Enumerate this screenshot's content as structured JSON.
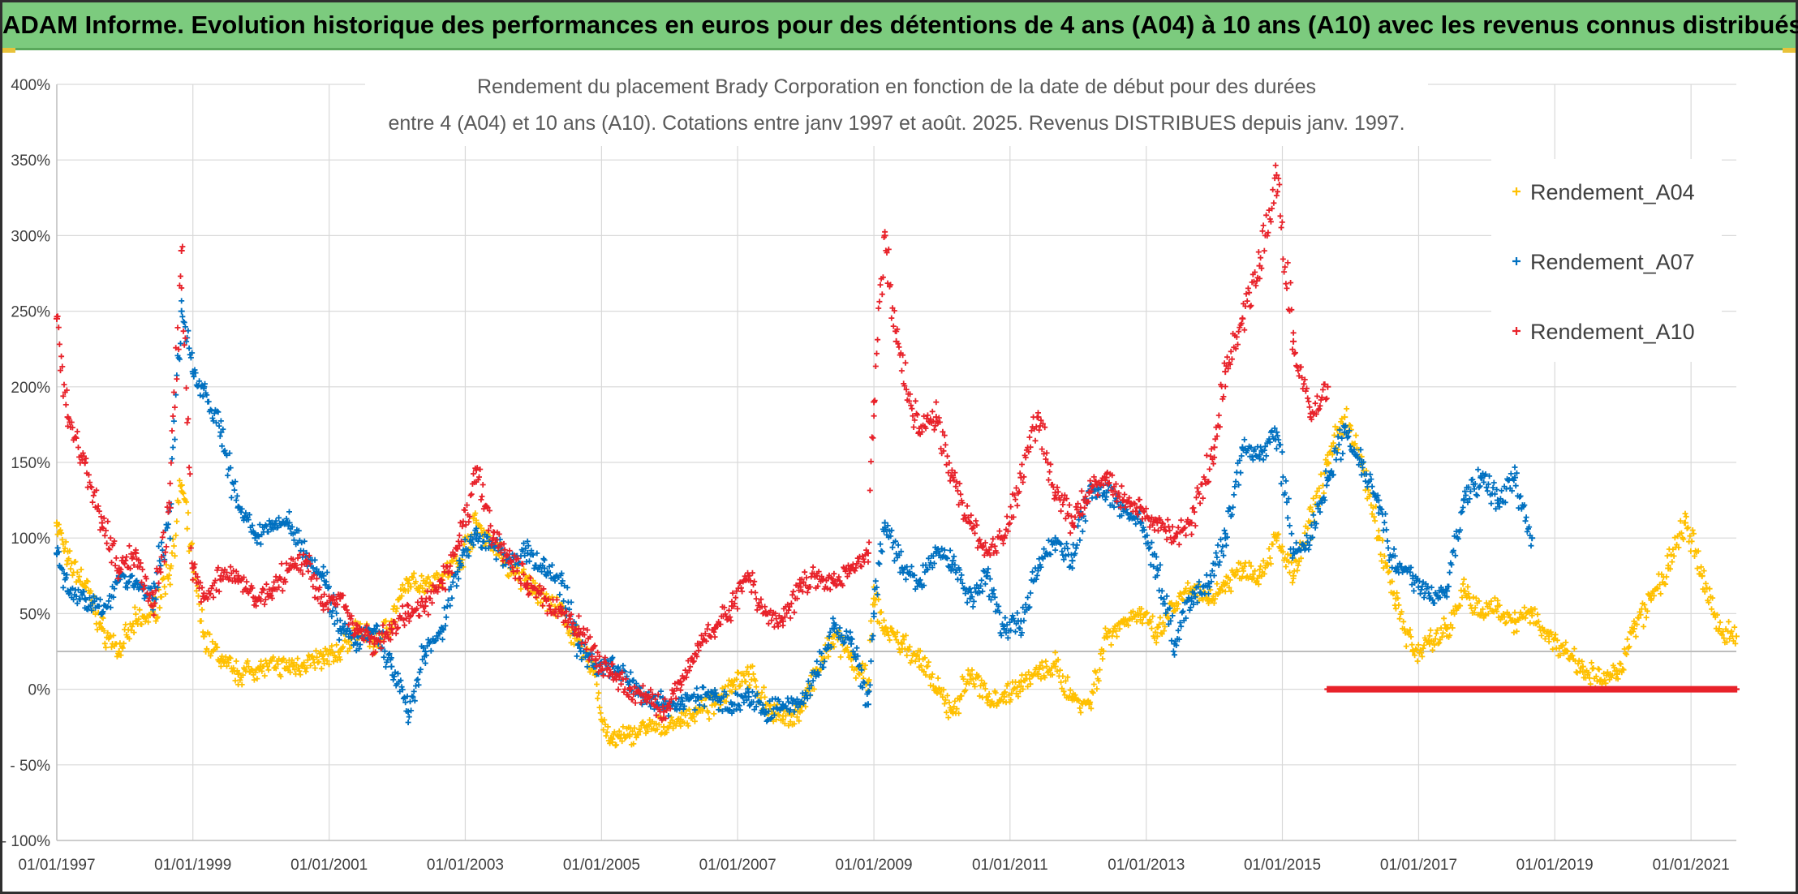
{
  "banner": {
    "title": "ADAM Informe. Evolution historique des performances en euros pour des détentions de 4 ans (A04) à 10 ans (A10) avec les revenus connus distribués"
  },
  "chart_data": {
    "type": "scatter",
    "title_line1": "Rendement du placement Brady Corporation en fonction de la date de début pour des durées",
    "title_line2": "entre 4 (A04) et 10 ans (A10). Cotations entre janv 1997 et août. 2025. Revenus DISTRIBUES depuis janv. 1997.",
    "xlabel": "",
    "ylabel": "",
    "x_ticks": [
      "01/01/1997",
      "01/01/1999",
      "01/01/2001",
      "01/01/2003",
      "01/01/2005",
      "01/01/2007",
      "01/01/2009",
      "01/01/2011",
      "01/01/2013",
      "01/01/2015",
      "01/01/2017",
      "01/01/2019",
      "01/01/2021"
    ],
    "y_ticks": [
      "400%",
      "350%",
      "300%",
      "250%",
      "200%",
      "150%",
      "100%",
      "50%",
      "0%",
      "- 50%",
      "- 100%"
    ],
    "xlim": [
      "1997-01-01",
      "2021-09-01"
    ],
    "ylim": [
      -100,
      400
    ],
    "reference_line": 25,
    "grid": true,
    "legend_position": "top-right",
    "marker": "+",
    "series": [
      {
        "name": "Rendement_A04",
        "color": "#ffc000",
        "points": [
          [
            "1997-01-01",
            110
          ],
          [
            "1997-03-01",
            85
          ],
          [
            "1997-06-01",
            70
          ],
          [
            "1997-09-01",
            40
          ],
          [
            "1997-12-01",
            25
          ],
          [
            "1998-03-01",
            45
          ],
          [
            "1998-06-01",
            50
          ],
          [
            "1998-09-01",
            80
          ],
          [
            "1998-11-01",
            135
          ],
          [
            "1999-01-01",
            80
          ],
          [
            "1999-03-01",
            35
          ],
          [
            "1999-06-01",
            20
          ],
          [
            "1999-09-01",
            10
          ],
          [
            "2000-01-01",
            15
          ],
          [
            "2000-06-01",
            15
          ],
          [
            "2000-12-01",
            20
          ],
          [
            "2001-03-01",
            25
          ],
          [
            "2001-06-01",
            40
          ],
          [
            "2001-09-01",
            30
          ],
          [
            "2001-12-01",
            45
          ],
          [
            "2002-03-01",
            70
          ],
          [
            "2002-06-01",
            70
          ],
          [
            "2002-09-01",
            75
          ],
          [
            "2002-12-01",
            85
          ],
          [
            "2003-03-01",
            110
          ],
          [
            "2003-06-01",
            95
          ],
          [
            "2003-09-01",
            80
          ],
          [
            "2003-12-01",
            70
          ],
          [
            "2004-03-01",
            60
          ],
          [
            "2004-06-01",
            50
          ],
          [
            "2004-09-01",
            30
          ],
          [
            "2004-12-01",
            10
          ],
          [
            "2005-01-01",
            -20
          ],
          [
            "2005-03-01",
            -35
          ],
          [
            "2005-06-01",
            -30
          ],
          [
            "2005-09-01",
            -25
          ],
          [
            "2005-12-01",
            -25
          ],
          [
            "2006-03-01",
            -20
          ],
          [
            "2006-06-01",
            -15
          ],
          [
            "2006-09-01",
            -10
          ],
          [
            "2006-12-01",
            5
          ],
          [
            "2007-03-01",
            10
          ],
          [
            "2007-06-01",
            -10
          ],
          [
            "2007-09-01",
            -20
          ],
          [
            "2007-12-01",
            -15
          ],
          [
            "2008-03-01",
            10
          ],
          [
            "2008-06-01",
            35
          ],
          [
            "2008-09-01",
            20
          ],
          [
            "2008-12-01",
            5
          ],
          [
            "2009-01-01",
            60
          ],
          [
            "2009-03-01",
            40
          ],
          [
            "2009-06-01",
            30
          ],
          [
            "2009-09-01",
            20
          ],
          [
            "2009-12-01",
            0
          ],
          [
            "2010-03-01",
            -15
          ],
          [
            "2010-06-01",
            10
          ],
          [
            "2010-09-01",
            -5
          ],
          [
            "2010-12-01",
            -5
          ],
          [
            "2011-03-01",
            5
          ],
          [
            "2011-06-01",
            10
          ],
          [
            "2011-09-01",
            15
          ],
          [
            "2011-12-01",
            -5
          ],
          [
            "2012-03-01",
            -10
          ],
          [
            "2012-06-01",
            35
          ],
          [
            "2012-09-01",
            45
          ],
          [
            "2012-12-01",
            50
          ],
          [
            "2013-03-01",
            35
          ],
          [
            "2013-06-01",
            55
          ],
          [
            "2013-09-01",
            65
          ],
          [
            "2013-12-01",
            60
          ],
          [
            "2014-03-01",
            70
          ],
          [
            "2014-06-01",
            80
          ],
          [
            "2014-09-01",
            75
          ],
          [
            "2014-12-01",
            100
          ],
          [
            "2015-03-01",
            75
          ],
          [
            "2015-06-01",
            110
          ],
          [
            "2015-09-01",
            150
          ],
          [
            "2015-12-01",
            180
          ],
          [
            "2016-03-01",
            150
          ],
          [
            "2016-06-01",
            100
          ],
          [
            "2016-09-01",
            60
          ],
          [
            "2016-12-01",
            25
          ],
          [
            "2017-03-01",
            30
          ],
          [
            "2017-06-01",
            40
          ],
          [
            "2017-09-01",
            65
          ],
          [
            "2017-12-01",
            50
          ],
          [
            "2018-03-01",
            55
          ],
          [
            "2018-06-01",
            45
          ],
          [
            "2018-09-01",
            50
          ],
          [
            "2018-12-01",
            35
          ],
          [
            "2019-03-01",
            25
          ],
          [
            "2019-06-01",
            15
          ],
          [
            "2019-09-01",
            5
          ],
          [
            "2019-12-01",
            10
          ],
          [
            "2020-03-01",
            40
          ],
          [
            "2020-06-01",
            60
          ],
          [
            "2020-09-01",
            80
          ],
          [
            "2020-12-01",
            110
          ],
          [
            "2021-03-01",
            75
          ],
          [
            "2021-06-01",
            40
          ],
          [
            "2021-09-01",
            35
          ]
        ]
      },
      {
        "name": "Rendement_A07",
        "color": "#0070c0",
        "points": [
          [
            "1997-01-01",
            90
          ],
          [
            "1997-03-01",
            65
          ],
          [
            "1997-06-01",
            60
          ],
          [
            "1997-09-01",
            50
          ],
          [
            "1997-12-01",
            75
          ],
          [
            "1998-03-01",
            70
          ],
          [
            "1998-06-01",
            60
          ],
          [
            "1998-09-01",
            120
          ],
          [
            "1998-11-01",
            250
          ],
          [
            "1999-01-01",
            210
          ],
          [
            "1999-03-01",
            200
          ],
          [
            "1999-06-01",
            170
          ],
          [
            "1999-09-01",
            120
          ],
          [
            "1999-12-01",
            100
          ],
          [
            "2000-03-01",
            110
          ],
          [
            "2000-06-01",
            110
          ],
          [
            "2000-09-01",
            90
          ],
          [
            "2000-12-01",
            75
          ],
          [
            "2001-03-01",
            40
          ],
          [
            "2001-06-01",
            30
          ],
          [
            "2001-09-01",
            40
          ],
          [
            "2001-12-01",
            15
          ],
          [
            "2002-03-01",
            -15
          ],
          [
            "2002-06-01",
            25
          ],
          [
            "2002-09-01",
            40
          ],
          [
            "2002-12-01",
            85
          ],
          [
            "2003-03-01",
            100
          ],
          [
            "2003-06-01",
            95
          ],
          [
            "2003-09-01",
            85
          ],
          [
            "2003-12-01",
            90
          ],
          [
            "2004-03-01",
            80
          ],
          [
            "2004-06-01",
            70
          ],
          [
            "2004-09-01",
            30
          ],
          [
            "2004-12-01",
            15
          ],
          [
            "2005-03-01",
            15
          ],
          [
            "2005-06-01",
            5
          ],
          [
            "2005-09-01",
            -5
          ],
          [
            "2005-12-01",
            -10
          ],
          [
            "2006-03-01",
            -10
          ],
          [
            "2006-06-01",
            -5
          ],
          [
            "2006-09-01",
            -5
          ],
          [
            "2006-12-01",
            -10
          ],
          [
            "2007-03-01",
            -5
          ],
          [
            "2007-06-01",
            -15
          ],
          [
            "2007-09-01",
            -10
          ],
          [
            "2007-12-01",
            -10
          ],
          [
            "2008-03-01",
            10
          ],
          [
            "2008-06-01",
            40
          ],
          [
            "2008-09-01",
            30
          ],
          [
            "2008-12-01",
            -10
          ],
          [
            "2009-01-01",
            50
          ],
          [
            "2009-03-01",
            110
          ],
          [
            "2009-06-01",
            80
          ],
          [
            "2009-09-01",
            70
          ],
          [
            "2009-12-01",
            90
          ],
          [
            "2010-03-01",
            85
          ],
          [
            "2010-06-01",
            60
          ],
          [
            "2010-09-01",
            75
          ],
          [
            "2010-12-01",
            40
          ],
          [
            "2011-03-01",
            45
          ],
          [
            "2011-06-01",
            80
          ],
          [
            "2011-09-01",
            100
          ],
          [
            "2011-12-01",
            85
          ],
          [
            "2012-03-01",
            130
          ],
          [
            "2012-06-01",
            130
          ],
          [
            "2012-09-01",
            120
          ],
          [
            "2012-12-01",
            110
          ],
          [
            "2013-03-01",
            80
          ],
          [
            "2013-06-01",
            30
          ],
          [
            "2013-09-01",
            60
          ],
          [
            "2013-12-01",
            70
          ],
          [
            "2014-03-01",
            100
          ],
          [
            "2014-06-01",
            160
          ],
          [
            "2014-09-01",
            155
          ],
          [
            "2014-12-01",
            170
          ],
          [
            "2015-03-01",
            90
          ],
          [
            "2015-06-01",
            100
          ],
          [
            "2015-09-01",
            140
          ],
          [
            "2015-12-01",
            170
          ],
          [
            "2016-03-01",
            150
          ],
          [
            "2016-06-01",
            125
          ],
          [
            "2016-09-01",
            80
          ],
          [
            "2016-12-01",
            75
          ],
          [
            "2017-03-01",
            60
          ],
          [
            "2017-06-01",
            65
          ],
          [
            "2017-09-01",
            125
          ],
          [
            "2017-12-01",
            140
          ],
          [
            "2018-03-01",
            125
          ],
          [
            "2018-06-01",
            140
          ],
          [
            "2018-09-01",
            100
          ]
        ]
      },
      {
        "name": "Rendement_A10",
        "color": "#e8222a",
        "points": [
          [
            "1997-01-01",
            245
          ],
          [
            "1997-03-01",
            180
          ],
          [
            "1997-06-01",
            150
          ],
          [
            "1997-09-01",
            110
          ],
          [
            "1997-12-01",
            80
          ],
          [
            "1998-03-01",
            90
          ],
          [
            "1998-06-01",
            55
          ],
          [
            "1998-09-01",
            120
          ],
          [
            "1998-11-01",
            290
          ],
          [
            "1999-01-01",
            80
          ],
          [
            "1999-03-01",
            60
          ],
          [
            "1999-06-01",
            75
          ],
          [
            "1999-09-01",
            75
          ],
          [
            "1999-12-01",
            60
          ],
          [
            "2000-03-01",
            65
          ],
          [
            "2000-06-01",
            80
          ],
          [
            "2000-09-01",
            85
          ],
          [
            "2000-12-01",
            55
          ],
          [
            "2001-03-01",
            60
          ],
          [
            "2001-06-01",
            40
          ],
          [
            "2001-09-01",
            30
          ],
          [
            "2001-12-01",
            40
          ],
          [
            "2002-03-01",
            50
          ],
          [
            "2002-06-01",
            55
          ],
          [
            "2002-09-01",
            70
          ],
          [
            "2002-12-01",
            95
          ],
          [
            "2003-03-01",
            145
          ],
          [
            "2003-06-01",
            100
          ],
          [
            "2003-09-01",
            85
          ],
          [
            "2003-12-01",
            70
          ],
          [
            "2004-03-01",
            60
          ],
          [
            "2004-06-01",
            50
          ],
          [
            "2004-09-01",
            40
          ],
          [
            "2004-12-01",
            20
          ],
          [
            "2005-03-01",
            10
          ],
          [
            "2005-06-01",
            0
          ],
          [
            "2005-09-01",
            -5
          ],
          [
            "2005-12-01",
            -15
          ],
          [
            "2006-03-01",
            5
          ],
          [
            "2006-06-01",
            30
          ],
          [
            "2006-09-01",
            40
          ],
          [
            "2006-12-01",
            55
          ],
          [
            "2007-03-01",
            75
          ],
          [
            "2007-06-01",
            50
          ],
          [
            "2007-09-01",
            45
          ],
          [
            "2007-12-01",
            70
          ],
          [
            "2008-03-01",
            75
          ],
          [
            "2008-06-01",
            70
          ],
          [
            "2008-09-01",
            80
          ],
          [
            "2008-12-01",
            90
          ],
          [
            "2009-01-01",
            190
          ],
          [
            "2009-03-01",
            300
          ],
          [
            "2009-05-01",
            230
          ],
          [
            "2009-09-01",
            170
          ],
          [
            "2009-12-01",
            180
          ],
          [
            "2010-03-01",
            140
          ],
          [
            "2010-06-01",
            110
          ],
          [
            "2010-09-01",
            90
          ],
          [
            "2010-12-01",
            100
          ],
          [
            "2011-03-01",
            140
          ],
          [
            "2011-06-01",
            180
          ],
          [
            "2011-09-01",
            130
          ],
          [
            "2011-12-01",
            110
          ],
          [
            "2012-03-01",
            130
          ],
          [
            "2012-06-01",
            140
          ],
          [
            "2012-09-01",
            125
          ],
          [
            "2012-12-01",
            120
          ],
          [
            "2013-03-01",
            110
          ],
          [
            "2013-06-01",
            100
          ],
          [
            "2013-09-01",
            110
          ],
          [
            "2014-01-01",
            160
          ],
          [
            "2014-03-01",
            210
          ],
          [
            "2014-06-01",
            245
          ],
          [
            "2014-09-01",
            280
          ],
          [
            "2014-12-01",
            340
          ],
          [
            "2015-03-01",
            230
          ],
          [
            "2015-06-01",
            180
          ],
          [
            "2015-09-01",
            200
          ]
        ]
      }
    ],
    "zero_segment": {
      "series": "Rendement_A10",
      "x_start": "2015-09-01",
      "x_end": "2021-09-01",
      "value": 0
    }
  }
}
